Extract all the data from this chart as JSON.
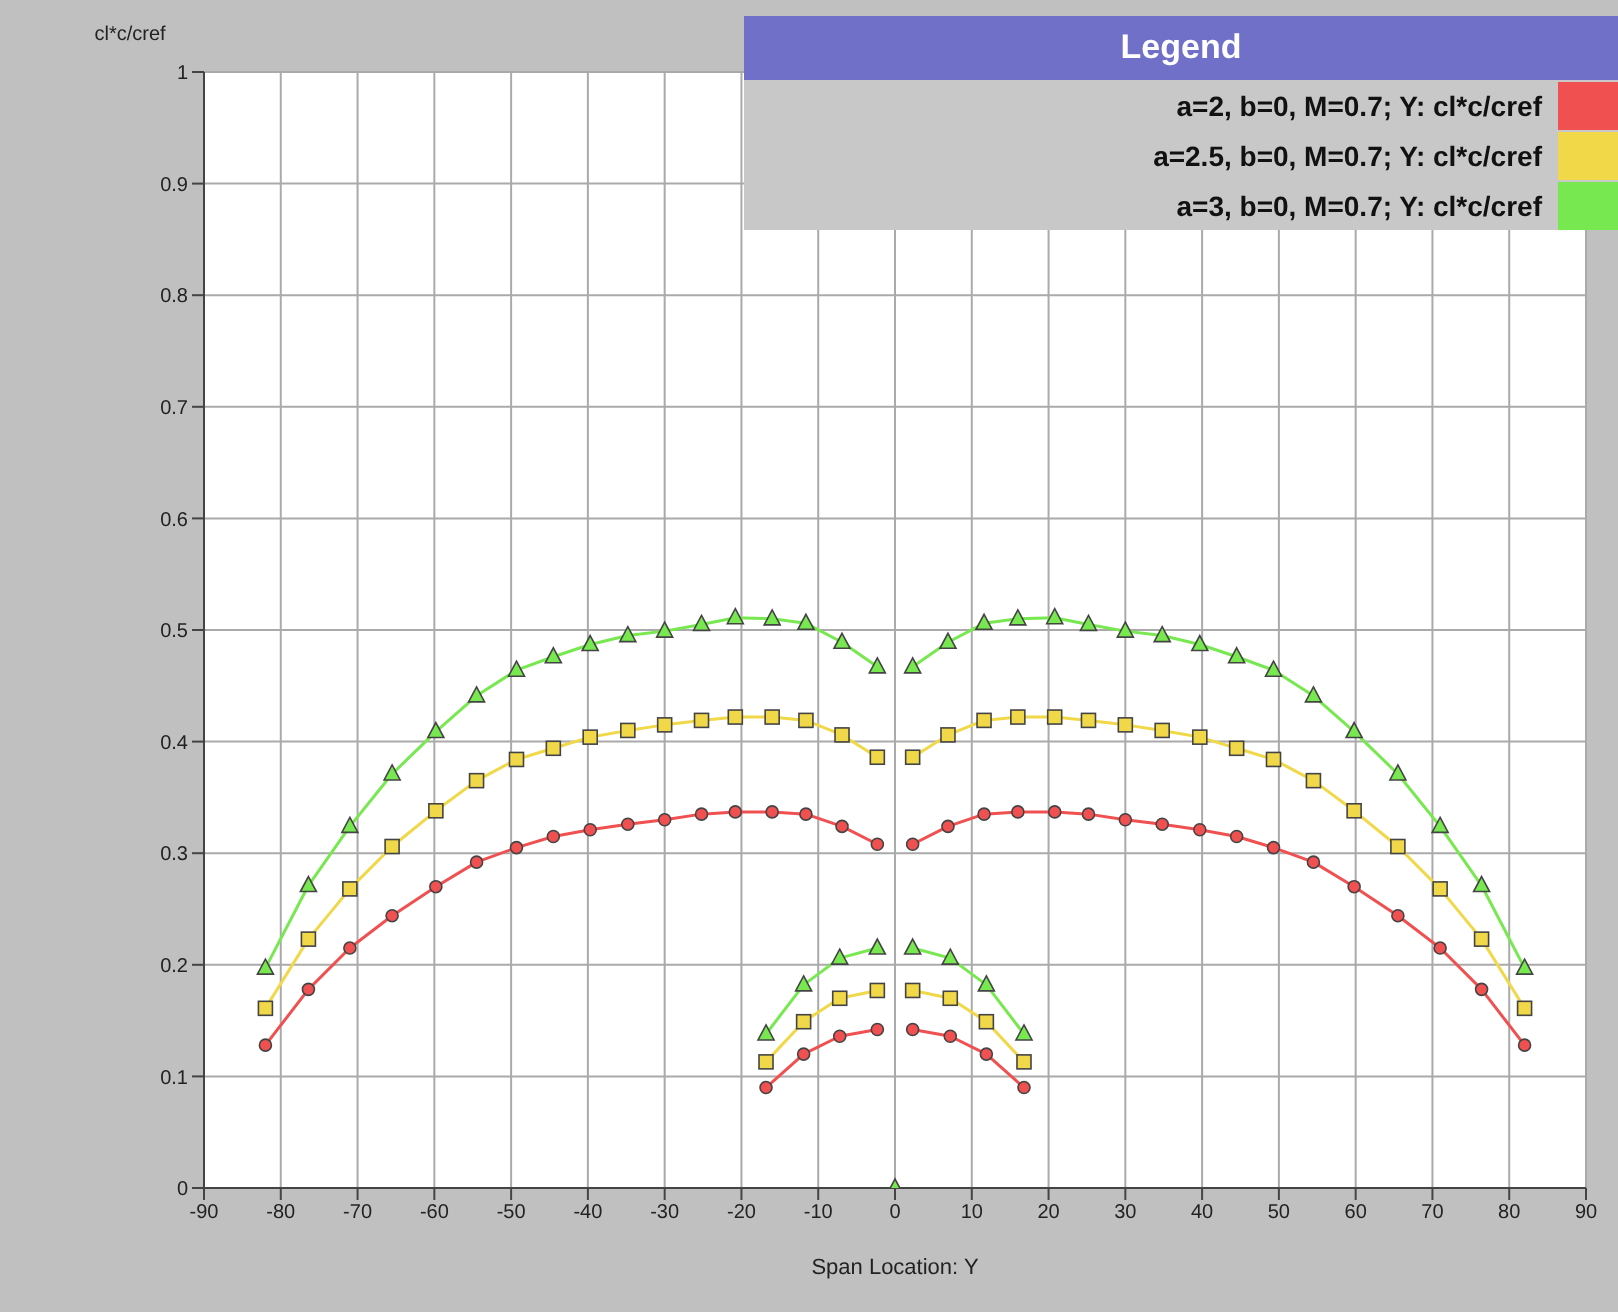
{
  "chart_data": {
    "type": "line",
    "xlabel": "Span Location: Y",
    "ylabel": "cl*c/cref",
    "legend_title": "Legend",
    "legend": "top right",
    "grid": true,
    "line_style": "solid",
    "xlim": [
      -90,
      90
    ],
    "xticks": [
      -90,
      -80,
      -70,
      -60,
      -50,
      -40,
      -30,
      -20,
      -10,
      0,
      10,
      20,
      30,
      40,
      50,
      60,
      70,
      80,
      90
    ],
    "ylim": [
      0,
      1
    ],
    "yticks": [
      0,
      0.1,
      0.2,
      0.3,
      0.4,
      0.5,
      0.6,
      0.7,
      0.8,
      0.9,
      1
    ],
    "series": [
      {
        "name": "a=2, b=0, M=0.7; Y: cl*c/cref",
        "color": "#f05050",
        "marker": "circle",
        "x": [
          -82,
          -76.4,
          -71,
          -65.5,
          -59.8,
          -54.5,
          -49.3,
          -44.5,
          -39.7,
          -34.8,
          -30,
          -25.2,
          -20.8,
          -16,
          -11.6,
          -6.9,
          -2.3,
          null,
          -16.8,
          -11.9,
          -7.2,
          -2.3,
          null,
          2.3,
          7.2,
          11.9,
          16.8,
          null,
          2.3,
          6.9,
          11.6,
          16,
          20.8,
          25.2,
          30,
          34.8,
          39.7,
          44.5,
          49.3,
          54.5,
          59.8,
          65.5,
          71,
          76.4,
          82
        ],
        "values": [
          0.128,
          0.178,
          0.215,
          0.244,
          0.27,
          0.292,
          0.305,
          0.315,
          0.321,
          0.326,
          0.33,
          0.335,
          0.337,
          0.337,
          0.335,
          0.324,
          0.308,
          null,
          0.09,
          0.12,
          0.136,
          0.142,
          null,
          0.142,
          0.136,
          0.12,
          0.09,
          null,
          0.308,
          0.324,
          0.335,
          0.337,
          0.337,
          0.335,
          0.33,
          0.326,
          0.321,
          0.315,
          0.305,
          0.292,
          0.27,
          0.244,
          0.215,
          0.178,
          0.128
        ]
      },
      {
        "name": "a=2.5, b=0, M=0.7; Y: cl*c/cref",
        "color": "#f0d848",
        "marker": "square",
        "x": [
          -82,
          -76.4,
          -71,
          -65.5,
          -59.8,
          -54.5,
          -49.3,
          -44.5,
          -39.7,
          -34.8,
          -30,
          -25.2,
          -20.8,
          -16,
          -11.6,
          -6.9,
          -2.3,
          null,
          -16.8,
          -11.9,
          -7.2,
          -2.3,
          null,
          2.3,
          7.2,
          11.9,
          16.8,
          null,
          2.3,
          6.9,
          11.6,
          16,
          20.8,
          25.2,
          30,
          34.8,
          39.7,
          44.5,
          49.3,
          54.5,
          59.8,
          65.5,
          71,
          76.4,
          82
        ],
        "values": [
          0.161,
          0.223,
          0.268,
          0.306,
          0.338,
          0.365,
          0.384,
          0.394,
          0.404,
          0.41,
          0.415,
          0.419,
          0.422,
          0.422,
          0.419,
          0.406,
          0.386,
          null,
          0.113,
          0.149,
          0.17,
          0.177,
          null,
          0.177,
          0.17,
          0.149,
          0.113,
          null,
          0.386,
          0.406,
          0.419,
          0.422,
          0.422,
          0.419,
          0.415,
          0.41,
          0.404,
          0.394,
          0.384,
          0.365,
          0.338,
          0.306,
          0.268,
          0.223,
          0.161
        ]
      },
      {
        "name": "a=3, b=0, M=0.7; Y: cl*c/cref",
        "color": "#78e850",
        "marker": "triangle",
        "x": [
          -82,
          -76.4,
          -71,
          -65.5,
          -59.8,
          -54.5,
          -49.3,
          -44.5,
          -39.7,
          -34.8,
          -30,
          -25.2,
          -20.8,
          -16,
          -11.6,
          -6.9,
          -2.3,
          null,
          -16.8,
          -11.9,
          -7.2,
          -2.3,
          null,
          0,
          null,
          2.3,
          7.2,
          11.9,
          16.8,
          null,
          2.3,
          6.9,
          11.6,
          16,
          20.8,
          25.2,
          30,
          34.8,
          39.7,
          44.5,
          49.3,
          54.5,
          59.8,
          65.5,
          71,
          76.4,
          82
        ],
        "values": [
          0.197,
          0.271,
          0.324,
          0.371,
          0.409,
          0.441,
          0.464,
          0.476,
          0.487,
          0.495,
          0.499,
          0.505,
          0.511,
          0.51,
          0.506,
          0.489,
          0.467,
          null,
          0.138,
          0.182,
          0.206,
          0.215,
          null,
          0,
          null,
          0.215,
          0.206,
          0.182,
          0.138,
          null,
          0.467,
          0.489,
          0.506,
          0.51,
          0.511,
          0.505,
          0.499,
          0.495,
          0.487,
          0.476,
          0.464,
          0.441,
          0.409,
          0.371,
          0.324,
          0.271,
          0.197
        ]
      }
    ]
  }
}
